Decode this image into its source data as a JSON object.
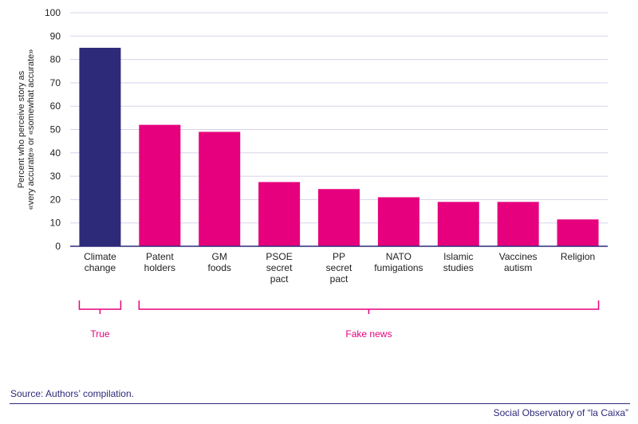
{
  "chart_data": {
    "type": "bar",
    "title": "",
    "xlabel": "",
    "ylabel_lines": [
      "Percent who perceive story as",
      "«very accurate» or «somewhat accurate»"
    ],
    "ylim": [
      0,
      100
    ],
    "yticks": [
      0,
      10,
      20,
      30,
      40,
      50,
      60,
      70,
      80,
      90,
      100
    ],
    "grid": true,
    "categories": [
      [
        "Climate",
        "change"
      ],
      [
        "Patent",
        "holders"
      ],
      [
        "GM",
        "foods"
      ],
      [
        "PSOE",
        "secret",
        "pact"
      ],
      [
        "PP",
        "secret",
        "pact"
      ],
      [
        "NATO",
        "fumigations"
      ],
      [
        "Islamic",
        "studies"
      ],
      [
        "Vaccines",
        "autism"
      ],
      [
        "Religion"
      ]
    ],
    "values": [
      85,
      52,
      49,
      27.5,
      24.5,
      21,
      19,
      19,
      11.5
    ],
    "bar_groups": [
      "true",
      "fake",
      "fake",
      "fake",
      "fake",
      "fake",
      "fake",
      "fake",
      "fake"
    ],
    "colors": {
      "true": "#2e2a7a",
      "fake": "#e6007e",
      "grid": "#d6d3ea",
      "axis": "#2e2a7a"
    },
    "annotations": [
      {
        "label": "True",
        "from": 0,
        "to": 0
      },
      {
        "label": "Fake news",
        "from": 1,
        "to": 8
      }
    ]
  },
  "footer": {
    "source": "Source: Authors’ compilation.",
    "publisher": "Social Observatory of “la Caixa”"
  }
}
